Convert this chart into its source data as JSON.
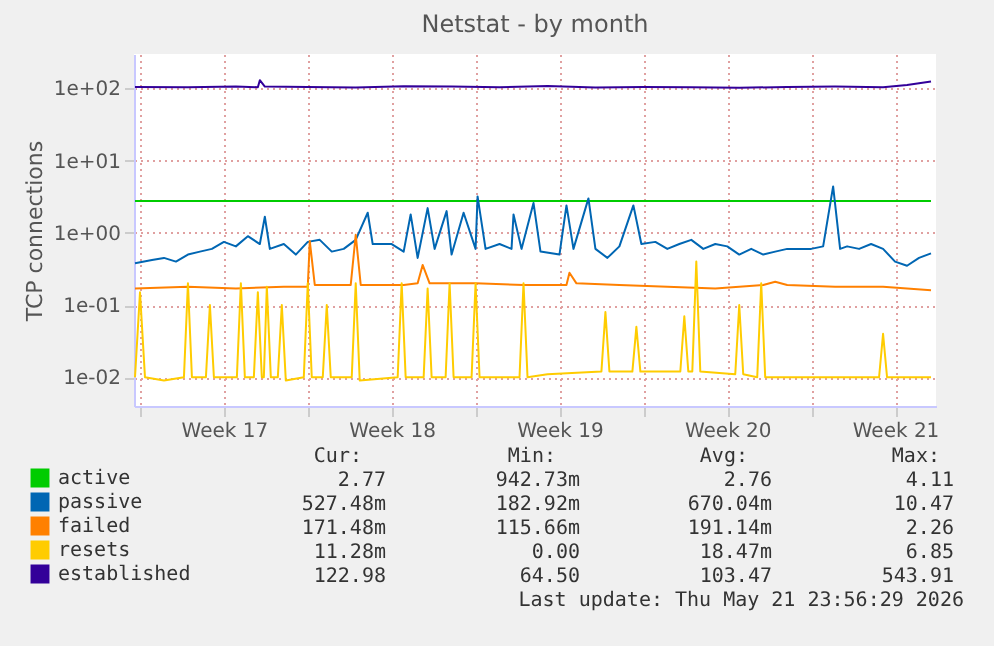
{
  "chart_data": {
    "type": "line",
    "title": "Netstat - by month",
    "ylabel": "TCP connections",
    "log": "y",
    "grid": true,
    "legend": "bottom left",
    "line_style": "solid",
    "marker": "none",
    "xlim": [
      "2026-04-17T18:00",
      "2026-05-21T05:00"
    ],
    "xticks": [
      {
        "value": "2026-04-18",
        "label": null
      },
      {
        "value": "2026-04-21T12:00",
        "label": "Week 17"
      },
      {
        "value": "2026-04-25",
        "label": null
      },
      {
        "value": "2026-04-28T12:00",
        "label": "Week 18"
      },
      {
        "value": "2026-05-02",
        "label": null
      },
      {
        "value": "2026-05-05T12:00",
        "label": "Week 19"
      },
      {
        "value": "2026-05-09",
        "label": null
      },
      {
        "value": "2026-05-12T12:00",
        "label": "Week 20"
      },
      {
        "value": "2026-05-16",
        "label": null
      },
      {
        "value": "2026-05-19T12:00",
        "label": "Week 21"
      }
    ],
    "ylim": [
      0.004,
      300
    ],
    "yticks": [
      {
        "value": 0.01,
        "label": "1e-02"
      },
      {
        "value": 0.1,
        "label": "1e-01"
      },
      {
        "value": 1,
        "label": "1e+00"
      },
      {
        "value": 10,
        "label": "1e+01"
      },
      {
        "value": 100,
        "label": "1e+02"
      }
    ],
    "series": [
      {
        "name": "active",
        "color": "#00cc00",
        "x": [
          "2026-04-17T19:00",
          "2026-04-26",
          "2026-05-04",
          "2026-05-12",
          "2026-05-21"
        ],
        "values": [
          2.77,
          2.77,
          2.77,
          2.77,
          2.77
        ]
      },
      {
        "name": "passive",
        "color": "#0066b3",
        "x": [
          "2026-04-17T19:00",
          "2026-04-18T12:00",
          "2026-04-19",
          "2026-04-19T12:00",
          "2026-04-20",
          "2026-04-20T12:00",
          "2026-04-21",
          "2026-04-21T12:00",
          "2026-04-22",
          "2026-04-22T12:00",
          "2026-04-23",
          "2026-04-23T05:00",
          "2026-04-23T10:00",
          "2026-04-24",
          "2026-04-24T12:00",
          "2026-04-25",
          "2026-04-25T12:00",
          "2026-04-26",
          "2026-04-26T12:00",
          "2026-04-27",
          "2026-04-27T12:00",
          "2026-04-27T17:00",
          "2026-04-28T12:00",
          "2026-04-29",
          "2026-04-29T07:00",
          "2026-04-29T14:00",
          "2026-04-30",
          "2026-04-30T07:00",
          "2026-04-30T19:00",
          "2026-05-01",
          "2026-05-01T12:00",
          "2026-05-02",
          "2026-05-02T02:00",
          "2026-05-02T10:00",
          "2026-05-03",
          "2026-05-03T12:00",
          "2026-05-03T14:00",
          "2026-05-03T22:00",
          "2026-05-04T10:00",
          "2026-05-04T17:00",
          "2026-05-05T12:00",
          "2026-05-05T19:00",
          "2026-05-06T02:00",
          "2026-05-06T17:00",
          "2026-05-07",
          "2026-05-07T12:00",
          "2026-05-08",
          "2026-05-08T14:00",
          "2026-05-08T22:00",
          "2026-05-09T12:00",
          "2026-05-10",
          "2026-05-10T12:00",
          "2026-05-11",
          "2026-05-11T12:00",
          "2026-05-12",
          "2026-05-12T12:00",
          "2026-05-13",
          "2026-05-13T12:00",
          "2026-05-14",
          "2026-05-14T12:00",
          "2026-05-15",
          "2026-05-16",
          "2026-05-16T12:00",
          "2026-05-16T22:00",
          "2026-05-17T05:00",
          "2026-05-17T12:00",
          "2026-05-18",
          "2026-05-18T12:00",
          "2026-05-19",
          "2026-05-19T12:00",
          "2026-05-20",
          "2026-05-20T12:00",
          "2026-05-21"
        ],
        "values": [
          0.38,
          0.42,
          0.45,
          0.4,
          0.5,
          0.55,
          0.6,
          0.75,
          0.65,
          0.9,
          0.7,
          1.67,
          0.6,
          0.7,
          0.5,
          0.75,
          0.8,
          0.55,
          0.6,
          0.8,
          1.9,
          0.7,
          0.7,
          0.55,
          1.8,
          0.45,
          2.2,
          0.6,
          2.0,
          0.5,
          1.9,
          0.6,
          3.2,
          0.6,
          0.7,
          0.6,
          1.8,
          0.6,
          2.6,
          0.55,
          0.5,
          2.4,
          0.6,
          3.0,
          0.6,
          0.45,
          0.65,
          2.4,
          0.7,
          0.75,
          0.6,
          0.7,
          0.8,
          0.6,
          0.7,
          0.65,
          0.5,
          0.6,
          0.5,
          0.55,
          0.6,
          0.6,
          0.65,
          4.4,
          0.6,
          0.65,
          0.6,
          0.7,
          0.6,
          0.4,
          0.35,
          0.45,
          0.52
        ]
      },
      {
        "name": "failed",
        "color": "#ff8000",
        "x": [
          "2026-04-17T19:00",
          "2026-04-20",
          "2026-04-22",
          "2026-04-24",
          "2026-04-25",
          "2026-04-25T02:00",
          "2026-04-25T07:00",
          "2026-04-26T19:00",
          "2026-04-27",
          "2026-04-27T05:00",
          "2026-04-29",
          "2026-04-29T14:00",
          "2026-04-29T19:00",
          "2026-04-30T02:00",
          "2026-05-02",
          "2026-05-04",
          "2026-05-05T19:00",
          "2026-05-05T22:00",
          "2026-05-06T05:00",
          "2026-05-08",
          "2026-05-10",
          "2026-05-12",
          "2026-05-14",
          "2026-05-14T12:00",
          "2026-05-15",
          "2026-05-17",
          "2026-05-19",
          "2026-05-21"
        ],
        "values": [
          0.17,
          0.18,
          0.17,
          0.18,
          0.18,
          0.77,
          0.19,
          0.19,
          0.94,
          0.19,
          0.19,
          0.2,
          0.36,
          0.2,
          0.2,
          0.19,
          0.19,
          0.28,
          0.2,
          0.19,
          0.18,
          0.17,
          0.19,
          0.21,
          0.19,
          0.18,
          0.18,
          0.16
        ]
      },
      {
        "name": "resets",
        "color": "#ffcc00",
        "x": [
          "2026-04-17T19:00",
          "2026-04-18",
          "2026-04-18T05:00",
          "2026-04-19",
          "2026-04-19T20:00",
          "2026-04-20",
          "2026-04-20T04:00",
          "2026-04-20T18:00",
          "2026-04-20T22:00",
          "2026-04-21T02:00",
          "2026-04-22T01:00",
          "2026-04-22T05:00",
          "2026-04-22T09:00",
          "2026-04-22T18:00",
          "2026-04-22T22:00",
          "2026-04-23T02:00",
          "2026-04-23T04:00",
          "2026-04-23T07:00",
          "2026-04-23T11:00",
          "2026-04-23T18:00",
          "2026-04-23T22:00",
          "2026-04-24T02:00",
          "2026-04-24T20:00",
          "2026-04-25",
          "2026-04-25T04:00",
          "2026-04-25T15:00",
          "2026-04-25T19:00",
          "2026-04-25T23:00",
          "2026-04-26T20:00",
          "2026-04-27",
          "2026-04-27T04:00",
          "2026-04-28T18:00",
          "2026-04-28T22:00",
          "2026-04-29T02:00",
          "2026-04-29T20:00",
          "2026-04-30",
          "2026-04-30T04:00",
          "2026-04-30T18:00",
          "2026-04-30T22:00",
          "2026-05-01T02:00",
          "2026-05-01T20:00",
          "2026-05-02",
          "2026-05-02T04:00",
          "2026-05-03T20:00",
          "2026-05-04",
          "2026-05-04T04:00",
          "2026-05-05",
          "2026-05-07T06:00",
          "2026-05-07T10:00",
          "2026-05-07T14:00",
          "2026-05-08T13:00",
          "2026-05-08T17:00",
          "2026-05-08T21:00",
          "2026-05-10T13:00",
          "2026-05-10T17:00",
          "2026-05-10T21:00",
          "2026-05-11T01:00",
          "2026-05-11T05:00",
          "2026-05-11T09:00",
          "2026-05-12T20:00",
          "2026-05-13",
          "2026-05-13T04:00",
          "2026-05-13T18:00",
          "2026-05-13T22:00",
          "2026-05-14T02:00",
          "2026-05-16",
          "2026-05-18T20:00",
          "2026-05-19",
          "2026-05-19T04:00",
          "2026-05-21"
        ],
        "values": [
          0.01,
          0.15,
          0.01,
          0.009,
          0.01,
          0.2,
          0.01,
          0.01,
          0.1,
          0.01,
          0.01,
          0.2,
          0.01,
          0.01,
          0.15,
          0.01,
          0.01,
          0.18,
          0.01,
          0.01,
          0.1,
          0.009,
          0.01,
          0.2,
          0.01,
          0.01,
          0.1,
          0.01,
          0.01,
          0.2,
          0.009,
          0.01,
          0.2,
          0.01,
          0.01,
          0.17,
          0.01,
          0.01,
          0.2,
          0.01,
          0.01,
          0.2,
          0.01,
          0.01,
          0.2,
          0.01,
          0.011,
          0.012,
          0.08,
          0.012,
          0.012,
          0.05,
          0.012,
          0.012,
          0.07,
          0.012,
          0.012,
          0.4,
          0.012,
          0.011,
          0.1,
          0.011,
          0.01,
          0.2,
          0.01,
          0.01,
          0.01,
          0.04,
          0.01,
          0.01
        ]
      },
      {
        "name": "established",
        "color": "#330099",
        "x": [
          "2026-04-17T19:00",
          "2026-04-20",
          "2026-04-22",
          "2026-04-22T22:00",
          "2026-04-23",
          "2026-04-23T05:00",
          "2026-04-25",
          "2026-04-27",
          "2026-04-29",
          "2026-05-01",
          "2026-05-03",
          "2026-05-05",
          "2026-05-07",
          "2026-05-09",
          "2026-05-11",
          "2026-05-13",
          "2026-05-15",
          "2026-05-17",
          "2026-05-19",
          "2026-05-20",
          "2026-05-21"
        ],
        "values": [
          105,
          104,
          106,
          104,
          130,
          106,
          105,
          103,
          107,
          106,
          104,
          108,
          103,
          105,
          104,
          102,
          105,
          106,
          104,
          112,
          125
        ]
      }
    ],
    "annotations": [
      "Cur:",
      "Min:",
      "Avg:",
      "Max:",
      "2.77",
      "942.73m",
      "2.76",
      "4.11",
      "527.48m",
      "182.92m",
      "670.04m",
      "10.47",
      "171.48m",
      "115.66m",
      "191.14m",
      "2.26",
      "11.28m",
      "0.00",
      "18.47m",
      "6.85",
      "122.98",
      "64.50",
      "103.47",
      "543.91",
      "Last update: Thu May 21 23:56:29 2026"
    ]
  }
}
